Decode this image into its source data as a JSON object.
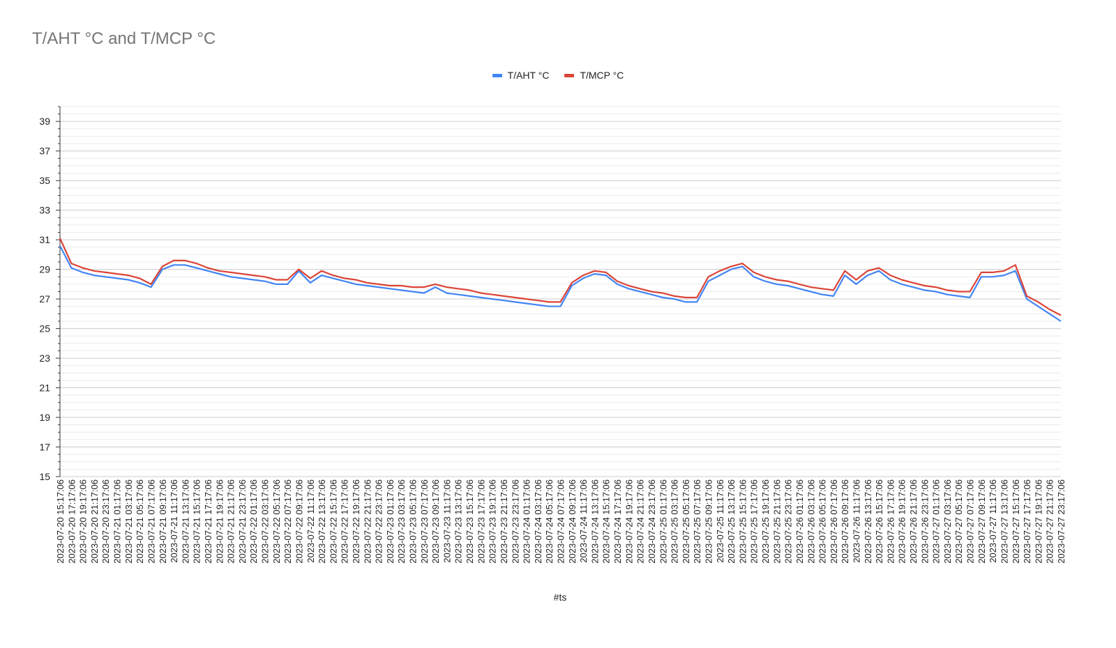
{
  "chart_data": {
    "type": "line",
    "title": "T/AHT °C and T/MCP °C",
    "xlabel": "#ts",
    "ylabel": "",
    "ylim": [
      15,
      40
    ],
    "yticks": [
      15,
      17,
      19,
      21,
      23,
      25,
      27,
      29,
      31,
      33,
      35,
      37,
      39
    ],
    "grid": true,
    "legend_position": "top",
    "x_start": "2023-07-20 15:17:06",
    "x_interval_hours": 2,
    "x_count": 89,
    "categories": [
      "2023-07-20 15:17:06",
      "2023-07-20 17:17:06",
      "2023-07-20 19:17:06",
      "2023-07-20 21:17:06",
      "2023-07-20 23:17:06",
      "2023-07-21 01:17:06",
      "2023-07-21 03:17:06",
      "2023-07-21 05:17:06",
      "2023-07-21 07:17:06",
      "2023-07-21 09:17:06",
      "2023-07-21 11:17:06",
      "2023-07-21 13:17:06",
      "2023-07-21 15:17:06",
      "2023-07-21 17:17:06",
      "2023-07-21 19:17:06",
      "2023-07-21 21:17:06",
      "2023-07-21 23:17:06",
      "2023-07-22 01:17:06",
      "2023-07-22 03:17:06",
      "2023-07-22 05:17:06",
      "2023-07-22 07:17:06",
      "2023-07-22 09:17:06",
      "2023-07-22 11:17:06",
      "2023-07-22 13:17:06",
      "2023-07-22 15:17:06",
      "2023-07-22 17:17:06",
      "2023-07-22 19:17:06",
      "2023-07-22 21:17:06",
      "2023-07-22 23:17:06",
      "2023-07-23 01:17:06",
      "2023-07-23 03:17:06",
      "2023-07-23 05:17:06",
      "2023-07-23 07:17:06",
      "2023-07-23 09:17:06",
      "2023-07-23 11:17:06",
      "2023-07-23 13:17:06",
      "2023-07-23 15:17:06",
      "2023-07-23 17:17:06",
      "2023-07-23 19:17:06",
      "2023-07-23 21:17:06",
      "2023-07-23 23:17:06",
      "2023-07-24 01:17:06",
      "2023-07-24 03:17:06",
      "2023-07-24 05:17:06",
      "2023-07-24 07:17:06",
      "2023-07-24 09:17:06",
      "2023-07-24 11:17:06",
      "2023-07-24 13:17:06",
      "2023-07-24 15:17:06",
      "2023-07-24 17:17:06",
      "2023-07-24 19:17:06",
      "2023-07-24 21:17:06",
      "2023-07-24 23:17:06",
      "2023-07-25 01:17:06",
      "2023-07-25 03:17:06",
      "2023-07-25 05:17:06",
      "2023-07-25 07:17:06",
      "2023-07-25 09:17:06",
      "2023-07-25 11:17:06",
      "2023-07-25 13:17:06",
      "2023-07-25 15:17:06",
      "2023-07-25 17:17:06",
      "2023-07-25 19:17:06",
      "2023-07-25 21:17:06",
      "2023-07-25 23:17:06",
      "2023-07-26 01:17:06",
      "2023-07-26 03:17:06",
      "2023-07-26 05:17:06",
      "2023-07-26 07:17:06",
      "2023-07-26 09:17:06",
      "2023-07-26 11:17:06",
      "2023-07-26 13:17:06",
      "2023-07-26 15:17:06",
      "2023-07-26 17:17:06",
      "2023-07-26 19:17:06",
      "2023-07-26 21:17:06",
      "2023-07-26 23:17:06",
      "2023-07-27 01:17:06",
      "2023-07-27 03:17:06",
      "2023-07-27 05:17:06",
      "2023-07-27 07:17:06",
      "2023-07-27 09:17:06",
      "2023-07-27 11:17:06",
      "2023-07-27 13:17:06",
      "2023-07-27 15:17:06",
      "2023-07-27 17:17:06",
      "2023-07-27 19:17:06",
      "2023-07-27 21:17:06",
      "2023-07-27 23:17:06"
    ],
    "series": [
      {
        "name": "T/AHT °C",
        "color": "#4285f4",
        "values": [
          30.6,
          29.1,
          28.8,
          28.6,
          28.5,
          28.4,
          28.3,
          28.1,
          27.8,
          29.0,
          29.3,
          29.3,
          29.1,
          28.9,
          28.7,
          28.5,
          28.4,
          28.3,
          28.2,
          28.0,
          28.0,
          28.9,
          28.1,
          28.6,
          28.4,
          28.2,
          28.0,
          27.9,
          27.8,
          27.7,
          27.6,
          27.5,
          27.4,
          27.8,
          27.4,
          27.3,
          27.2,
          27.1,
          27.0,
          26.9,
          26.8,
          26.7,
          26.6,
          26.5,
          26.5,
          27.9,
          28.4,
          28.7,
          28.6,
          28.0,
          27.7,
          27.5,
          27.3,
          27.1,
          27.0,
          26.8,
          26.8,
          28.2,
          28.6,
          29.0,
          29.2,
          28.5,
          28.2,
          28.0,
          27.9,
          27.7,
          27.5,
          27.3,
          27.2,
          28.6,
          28.0,
          28.6,
          28.9,
          28.3,
          28.0,
          27.8,
          27.6,
          27.5,
          27.3,
          27.2,
          27.1,
          28.5,
          28.5,
          28.6,
          28.9,
          27.0,
          26.5,
          26.0,
          25.5
        ]
      },
      {
        "name": "T/MCP °C",
        "color": "#db4437",
        "values": [
          31.1,
          29.4,
          29.1,
          28.9,
          28.8,
          28.7,
          28.6,
          28.4,
          28.0,
          29.2,
          29.6,
          29.6,
          29.4,
          29.1,
          28.9,
          28.8,
          28.7,
          28.6,
          28.5,
          28.3,
          28.3,
          29.0,
          28.4,
          28.9,
          28.6,
          28.4,
          28.3,
          28.1,
          28.0,
          27.9,
          27.9,
          27.8,
          27.8,
          28.0,
          27.8,
          27.7,
          27.6,
          27.4,
          27.3,
          27.2,
          27.1,
          27.0,
          26.9,
          26.8,
          26.8,
          28.1,
          28.6,
          28.9,
          28.8,
          28.2,
          27.9,
          27.7,
          27.5,
          27.4,
          27.2,
          27.1,
          27.1,
          28.5,
          28.9,
          29.2,
          29.4,
          28.8,
          28.5,
          28.3,
          28.2,
          28.0,
          27.8,
          27.7,
          27.6,
          28.9,
          28.3,
          28.9,
          29.1,
          28.6,
          28.3,
          28.1,
          27.9,
          27.8,
          27.6,
          27.5,
          27.5,
          28.8,
          28.8,
          28.9,
          29.3,
          27.2,
          26.8,
          26.3,
          25.9
        ]
      }
    ]
  }
}
